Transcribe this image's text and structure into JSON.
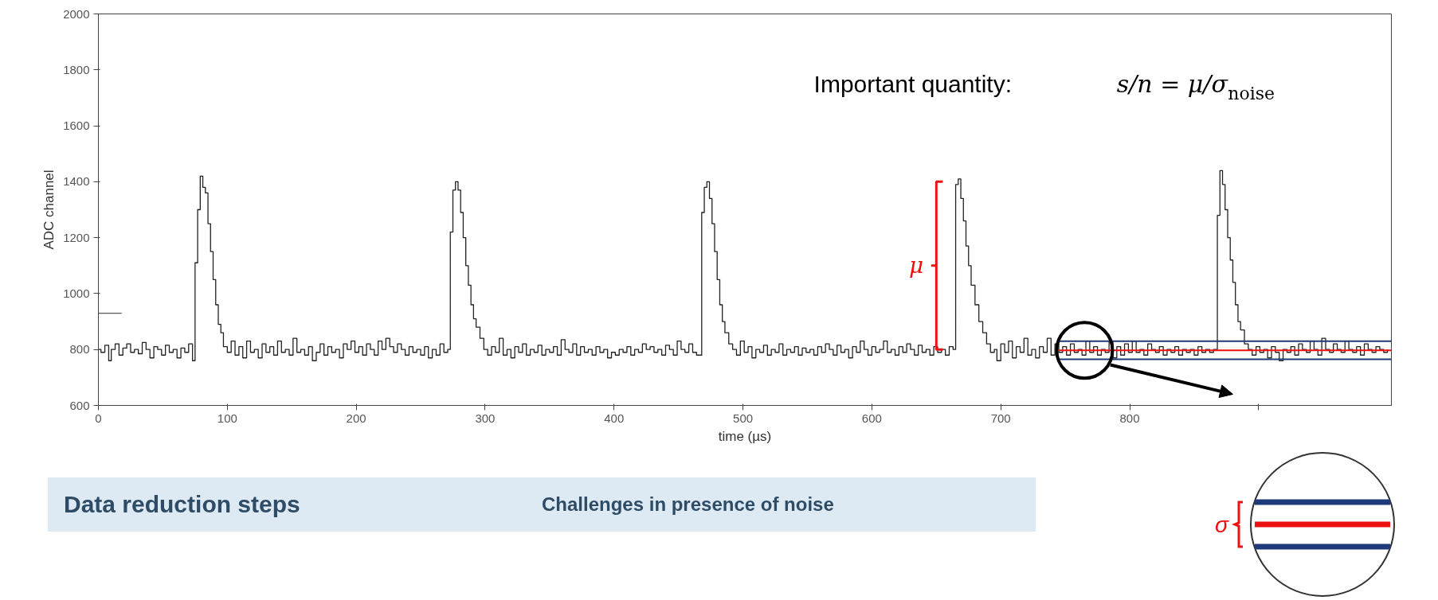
{
  "chart_data": {
    "type": "step",
    "xlabel": "time (µs)",
    "ylabel": "ADC channel",
    "xlim": [
      0,
      1003
    ],
    "ylim": [
      600,
      2000
    ],
    "xticks": [
      0,
      100,
      200,
      300,
      400,
      500,
      600,
      700,
      800,
      {
        "value": 900,
        "label": null
      }
    ],
    "yticks": [
      600,
      800,
      1000,
      1200,
      1400,
      1600,
      1800,
      2000
    ],
    "grid": false,
    "marker": "none",
    "line_style": "solid",
    "series": [
      {
        "color": "#222222",
        "x": [
          0,
          2,
          5,
          8,
          10,
          13,
          16,
          19,
          22,
          25,
          28,
          31,
          34,
          37,
          40,
          43,
          46,
          49,
          52,
          55,
          58,
          61,
          64,
          67,
          70,
          73,
          75,
          77,
          79,
          81,
          83,
          85,
          87,
          89,
          91,
          93,
          95,
          97,
          100,
          103,
          106,
          109,
          112,
          115,
          118,
          121,
          124,
          127,
          130,
          133,
          136,
          139,
          142,
          145,
          148,
          151,
          154,
          157,
          160,
          163,
          166,
          169,
          172,
          175,
          178,
          181,
          184,
          187,
          190,
          193,
          196,
          199,
          202,
          205,
          208,
          211,
          214,
          217,
          220,
          223,
          226,
          229,
          232,
          235,
          238,
          241,
          244,
          247,
          250,
          253,
          256,
          259,
          262,
          265,
          268,
          271,
          273,
          275,
          277,
          279,
          281,
          283,
          285,
          287,
          289,
          291,
          293,
          296,
          299,
          302,
          305,
          308,
          311,
          314,
          317,
          320,
          323,
          326,
          329,
          332,
          335,
          338,
          341,
          344,
          347,
          350,
          353,
          356,
          359,
          362,
          365,
          368,
          371,
          374,
          377,
          380,
          383,
          386,
          389,
          392,
          395,
          398,
          401,
          404,
          407,
          410,
          413,
          416,
          419,
          422,
          425,
          428,
          431,
          434,
          437,
          440,
          443,
          446,
          449,
          452,
          455,
          458,
          461,
          464,
          468,
          470,
          472,
          474,
          476,
          478,
          480,
          482,
          484,
          486,
          489,
          492,
          495,
          498,
          501,
          504,
          507,
          510,
          513,
          516,
          519,
          522,
          525,
          528,
          531,
          534,
          537,
          540,
          543,
          546,
          549,
          552,
          555,
          558,
          561,
          564,
          567,
          570,
          573,
          576,
          579,
          582,
          585,
          588,
          591,
          594,
          597,
          600,
          603,
          606,
          609,
          612,
          615,
          618,
          621,
          624,
          627,
          630,
          633,
          636,
          639,
          642,
          645,
          648,
          651,
          654,
          657,
          660,
          663,
          665,
          667,
          669,
          671,
          673,
          675,
          677,
          680,
          683,
          686,
          689,
          692,
          695,
          697,
          700,
          703,
          706,
          709,
          712,
          715,
          718,
          721,
          724,
          727,
          730,
          733,
          736,
          739,
          742,
          745,
          748,
          751,
          754,
          757,
          760,
          763,
          766,
          769,
          772,
          775,
          778,
          781,
          784,
          787,
          790,
          793,
          796,
          799,
          802,
          805,
          808,
          811,
          814,
          817,
          820,
          823,
          826,
          829,
          832,
          835,
          838,
          841,
          844,
          847,
          850,
          853,
          856,
          859,
          862,
          865,
          868,
          870,
          872,
          874,
          876,
          878,
          880,
          882,
          884,
          886,
          889,
          892,
          895,
          898,
          901,
          904,
          907,
          910,
          913,
          916,
          919,
          922,
          925,
          928,
          931,
          934,
          937,
          940,
          943,
          946,
          949,
          952,
          955,
          958,
          961,
          964,
          967,
          970,
          973,
          976,
          979,
          982,
          985,
          988,
          991,
          994,
          997,
          1000
        ],
        "values": [
          800,
          790,
          815,
          760,
          800,
          820,
          780,
          805,
          820,
          790,
          800,
          785,
          825,
          800,
          770,
          810,
          800,
          780,
          815,
          790,
          800,
          770,
          805,
          790,
          820,
          760,
          1110,
          1300,
          1420,
          1380,
          1360,
          1250,
          1150,
          1050,
          960,
          890,
          860,
          810,
          790,
          830,
          780,
          810,
          770,
          830,
          790,
          800,
          770,
          820,
          790,
          810,
          780,
          830,
          790,
          800,
          780,
          840,
          790,
          800,
          780,
          810,
          760,
          790,
          820,
          780,
          810,
          790,
          800,
          770,
          820,
          800,
          830,
          790,
          810,
          780,
          820,
          800,
          780,
          830,
          800,
          840,
          810,
          790,
          820,
          800,
          780,
          810,
          790,
          800,
          780,
          810,
          770,
          800,
          780,
          820,
          790,
          800,
          1220,
          1370,
          1400,
          1370,
          1290,
          1200,
          1100,
          1030,
          960,
          910,
          880,
          840,
          800,
          780,
          810,
          790,
          840,
          780,
          800,
          770,
          810,
          790,
          820,
          780,
          800,
          790,
          815,
          780,
          800,
          790,
          810,
          780,
          835,
          800,
          790,
          820,
          780,
          810,
          790,
          800,
          780,
          810,
          790,
          800,
          770,
          790,
          780,
          800,
          790,
          810,
          780,
          800,
          790,
          820,
          800,
          810,
          790,
          800,
          780,
          815,
          800,
          780,
          830,
          800,
          790,
          820,
          790,
          780,
          1290,
          1380,
          1400,
          1340,
          1250,
          1150,
          1050,
          960,
          900,
          860,
          820,
          800,
          780,
          830,
          790,
          810,
          770,
          800,
          790,
          815,
          780,
          800,
          790,
          820,
          780,
          800,
          790,
          810,
          780,
          805,
          790,
          800,
          780,
          810,
          790,
          820,
          800,
          780,
          815,
          790,
          800,
          770,
          810,
          790,
          830,
          800,
          780,
          810,
          790,
          800,
          830,
          790,
          800,
          780,
          810,
          790,
          820,
          800,
          780,
          815,
          790,
          800,
          780,
          810,
          790,
          800,
          780,
          810,
          800,
          1390,
          1410,
          1340,
          1260,
          1170,
          1100,
          1030,
          960,
          900,
          860,
          820,
          790,
          800,
          760,
          820,
          790,
          830,
          770,
          810,
          790,
          840,
          780,
          800,
          770,
          810,
          790,
          840,
          780,
          820,
          790,
          810,
          780,
          820,
          790,
          800,
          780,
          830,
          790,
          810,
          780,
          800,
          790,
          830,
          770,
          810,
          780,
          820,
          790,
          830,
          790,
          800,
          780,
          820,
          800,
          790,
          810,
          780,
          800,
          790,
          810,
          780,
          800,
          790,
          800,
          780,
          810,
          790,
          800,
          790,
          800,
          1280,
          1440,
          1390,
          1300,
          1200,
          1120,
          1040,
          960,
          900,
          870,
          820,
          800,
          780,
          810,
          790,
          800,
          770,
          810,
          790,
          760,
          800,
          790,
          810,
          780,
          820,
          800,
          790,
          830,
          800,
          780,
          840,
          800,
          790,
          820,
          800,
          790,
          830,
          800,
          790,
          810,
          780,
          820,
          800,
          790,
          810,
          800,
          790,
          800
        ]
      },
      {
        "type": "line",
        "color": "#555555",
        "x": [
          0,
          18
        ],
        "values": [
          930,
          930
        ]
      },
      {
        "type": "line",
        "color": "#1f3a7a",
        "x": [
          745,
          1003
        ],
        "values": [
          830,
          830
        ]
      },
      {
        "type": "line",
        "color": "#1f3a7a",
        "x": [
          745,
          1003
        ],
        "values": [
          765,
          765
        ]
      },
      {
        "type": "line",
        "color": "#ee1111",
        "x": [
          745,
          1003
        ],
        "values": [
          797,
          797
        ]
      }
    ],
    "annotations": [
      "Important quantity:",
      "s/n = μ/σ$_{noise}$",
      "μ",
      "σ",
      "Data reduction steps",
      "Challenges in presence of noise"
    ]
  }
}
